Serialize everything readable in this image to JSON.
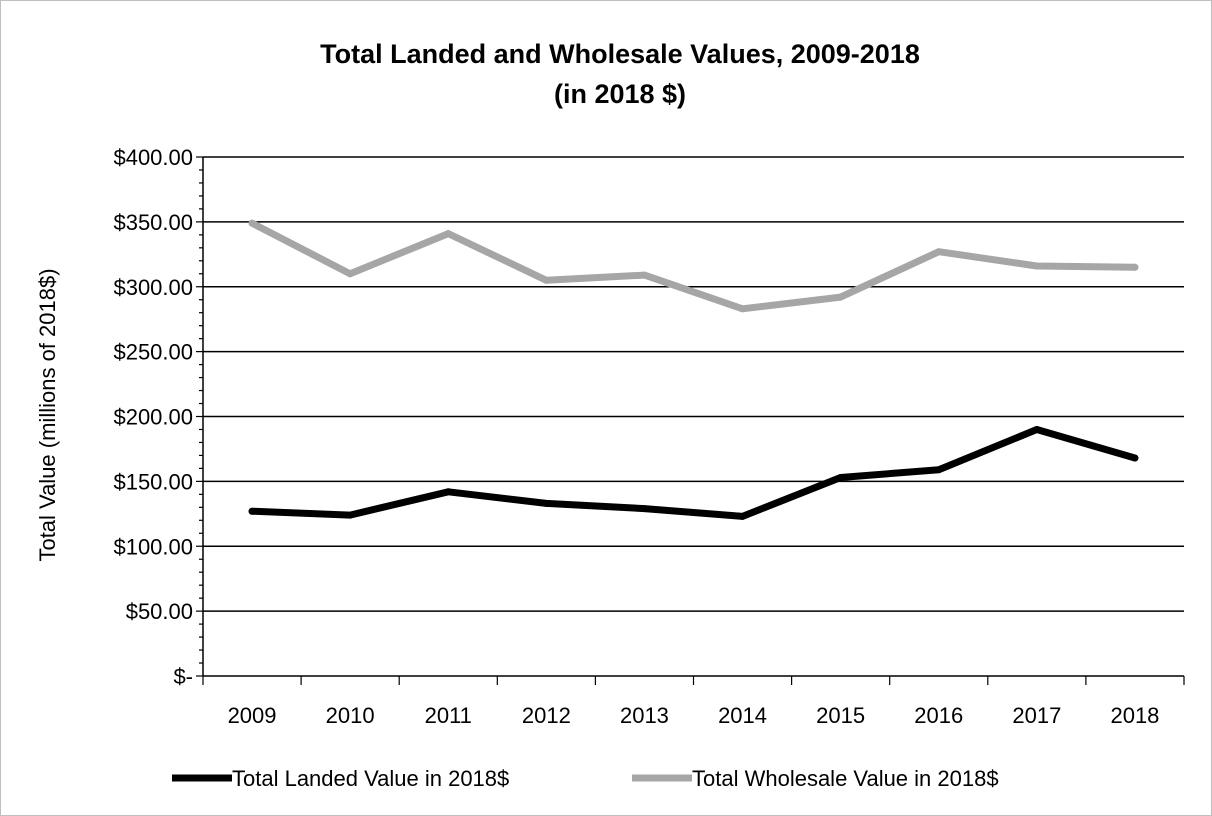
{
  "chart_data": {
    "type": "line",
    "title": "Total Landed and Wholesale Values, 2009-2018",
    "subtitle": "(in 2018 $)",
    "xlabel": "",
    "ylabel": "Total Value (millions of 2018$)",
    "categories": [
      "2009",
      "2010",
      "2011",
      "2012",
      "2013",
      "2014",
      "2015",
      "2016",
      "2017",
      "2018"
    ],
    "y_tick_labels": [
      "$-",
      "$50.00",
      "$100.00",
      "$150.00",
      "$200.00",
      "$250.00",
      "$300.00",
      "$350.00",
      "$400.00"
    ],
    "ylim": [
      0,
      400
    ],
    "y_major_step": 50,
    "y_minor_step": 10,
    "grid": "horizontal",
    "legend_position": "bottom",
    "series": [
      {
        "name": "Total Landed Value in 2018$",
        "color": "#000000",
        "values": [
          127,
          124,
          142,
          133,
          129,
          123,
          153,
          159,
          190,
          168
        ]
      },
      {
        "name": "Total Wholesale Value in 2018$",
        "color": "#a6a6a6",
        "values": [
          349,
          310,
          341,
          305,
          309,
          283,
          292,
          327,
          316,
          315
        ]
      }
    ]
  }
}
